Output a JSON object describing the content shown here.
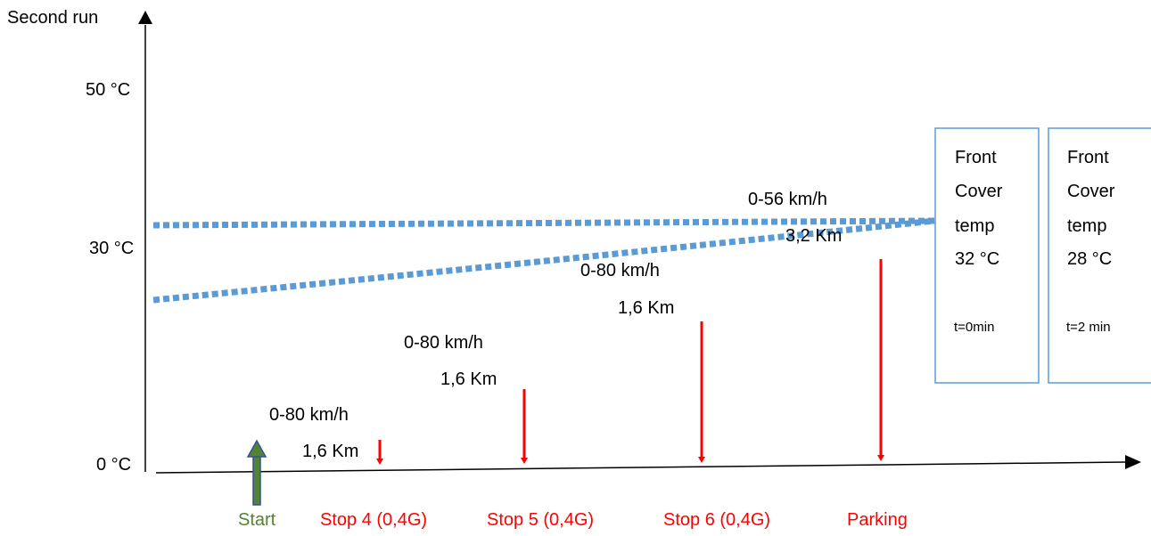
{
  "y_axis": {
    "title": "Second run",
    "ticks": {
      "t50": "50 °C",
      "t30": "30 °C",
      "t0": "0 °C"
    }
  },
  "segments": {
    "s1": {
      "speed": "0-80 km/h",
      "distance": "1,6 Km"
    },
    "s2": {
      "speed": "0-80 km/h",
      "distance": "1,6 Km"
    },
    "s3": {
      "speed": "0-80 km/h",
      "distance": "1,6 Km"
    },
    "s4": {
      "speed": "0-56 km/h",
      "distance": "3,2 Km"
    }
  },
  "x_labels": {
    "start": "Start",
    "stop4": "Stop 4 (0,4G)",
    "stop5": "Stop 5 (0,4G)",
    "stop6": "Stop 6 (0,4G)",
    "parking": "Parking"
  },
  "boxes": {
    "b1": {
      "line1": "Front",
      "line2": "Cover",
      "line3": "temp",
      "value": "32 °C",
      "time": "t=0min"
    },
    "b2": {
      "line1": "Front",
      "line2": "Cover",
      "line3": "temp",
      "value": "28 °C",
      "time": "t=2 min"
    }
  },
  "colors": {
    "axis": "#000000",
    "stop_arrow": "#ff0000",
    "start_arrow_fill": "#548235",
    "start_arrow_stroke": "#2f5597",
    "temp_lines": "#5b9bd5",
    "box_border": "#5b9bd5"
  }
}
